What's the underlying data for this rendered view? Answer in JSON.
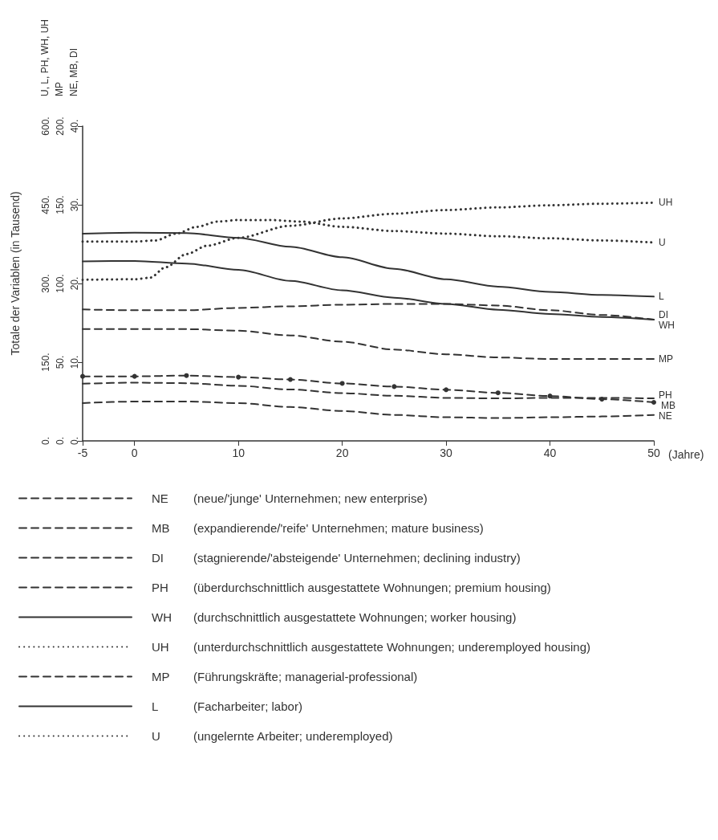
{
  "chart_data": {
    "type": "line",
    "ylabel": "U, L, PH, WH, UH",
    "y2label": "MP",
    "y3label": "NE, MB, DI",
    "xlabel": "(Jahre)",
    "annotations": [
      "Totale der Variablen (in Tausend)",
      "(neue/'junge' Unternehmen; new enterprise)",
      "(expandierende/'reife' Unternehmen; mature business)",
      "(stagnierende/'absteigende' Unternehmen; declining industry)",
      "(überdurchschnittlich ausgestattete Wohnungen; premium housing)",
      "(durchschnittlich ausgestattete Wohnungen; worker housing)",
      "(unterdurchschnittlich ausgestattete Wohnungen; underemployed housing)",
      "(Führungskräfte; managerial-professional)",
      "(Facharbeiter; labor)",
      "(ungelernte Arbeiter; underemployed)"
    ],
    "xlim": [
      -5,
      50
    ],
    "xticks": [
      -5,
      0,
      10,
      20,
      30,
      40,
      50
    ],
    "ylim": [
      0,
      600
    ],
    "yticks": [
      {
        "value": 0,
        "label": "0."
      },
      {
        "value": 150,
        "label": "150."
      },
      {
        "value": 300,
        "label": "300."
      },
      {
        "value": 450,
        "label": "450."
      },
      {
        "value": 600,
        "label": "600."
      }
    ],
    "y2lim": [
      0,
      200
    ],
    "y2ticks": [
      {
        "value": 0,
        "label": "0."
      },
      {
        "value": 50,
        "label": "50."
      },
      {
        "value": 100,
        "label": "100."
      },
      {
        "value": 150,
        "label": "150."
      },
      {
        "value": 200,
        "label": "200."
      }
    ],
    "y3lim": [
      0,
      40
    ],
    "y3ticks": [
      {
        "value": 0,
        "label": "0."
      },
      {
        "value": 10,
        "label": "10."
      },
      {
        "value": 20,
        "label": "20."
      },
      {
        "value": 30,
        "label": "30."
      },
      {
        "value": 40,
        "label": "40."
      }
    ],
    "grid": false,
    "legend": "bottom",
    "marker": "none",
    "x": [
      -5,
      0,
      5,
      10,
      15,
      20,
      25,
      30,
      35,
      40,
      45,
      50
    ],
    "series": [
      {
        "name": "NE",
        "color": "#333333",
        "axis": "y3",
        "line_style": "dashed",
        "values": [
          4.8,
          5.0,
          5.0,
          4.8,
          4.3,
          3.8,
          3.3,
          3.0,
          2.9,
          3.0,
          3.1,
          3.3
        ]
      },
      {
        "name": "MB",
        "color": "#333333",
        "axis": "y3",
        "line_style": "dashed",
        "marker": "circle",
        "values": [
          8.2,
          8.2,
          8.3,
          8.1,
          7.8,
          7.3,
          6.9,
          6.5,
          6.1,
          5.7,
          5.3,
          4.9
        ]
      },
      {
        "name": "DI",
        "color": "#333333",
        "axis": "y3",
        "line_style": "dashed",
        "values": [
          16.7,
          16.6,
          16.6,
          16.9,
          17.1,
          17.3,
          17.4,
          17.4,
          17.2,
          16.6,
          16.0,
          15.4
        ]
      },
      {
        "name": "PH",
        "color": "#333333",
        "line_style": "dashed",
        "values": [
          109,
          111,
          110,
          105,
          98,
          91,
          86,
          82,
          81,
          82,
          82,
          81
        ]
      },
      {
        "name": "WH",
        "color": "#333333",
        "line_style": "solid",
        "values": [
          342,
          343,
          338,
          326,
          305,
          287,
          273,
          261,
          250,
          242,
          236,
          231
        ]
      },
      {
        "name": "UH",
        "color": "#333333",
        "line_style": "dotted",
        "x": [
          -5,
          0,
          1.5,
          3,
          5,
          7,
          10,
          15,
          20,
          25,
          30,
          35,
          40,
          45,
          50
        ],
        "values": [
          307,
          308,
          311,
          331,
          356,
          372,
          387,
          410,
          424,
          433,
          440,
          445,
          449,
          452,
          454
        ]
      },
      {
        "name": "MP",
        "color": "#333333",
        "axis": "y2",
        "line_style": "dashed",
        "values": [
          71,
          71,
          71,
          70,
          67,
          63,
          58,
          55,
          53,
          52,
          52,
          52
        ]
      },
      {
        "name": "L",
        "color": "#333333",
        "line_style": "solid",
        "values": [
          395,
          397,
          396,
          387,
          370,
          350,
          328,
          308,
          294,
          284,
          278,
          275
        ]
      },
      {
        "name": "U",
        "color": "#333333",
        "line_style": "dotted",
        "x": [
          -5,
          0,
          2,
          4,
          6,
          8,
          10,
          13,
          16,
          20,
          25,
          30,
          35,
          40,
          45,
          50
        ],
        "values": [
          380,
          380,
          382,
          395,
          408,
          418,
          421,
          421,
          418,
          408,
          400,
          395,
          390,
          386,
          382,
          378
        ]
      }
    ]
  }
}
